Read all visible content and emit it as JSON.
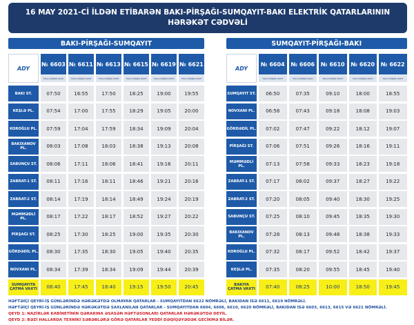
{
  "title": [
    "16 MAY 2021-Cİ İLDƏN ETİBARƏN BAKI-PİRŞAĞI-SUMQAYIT-BAKI ELEKTRİK QATARLARININ",
    "HƏRƏKƏT CƏDVƏLİ"
  ],
  "logo": "ADY",
  "column_note": "YOLA DÜŞMƏ VAXTI",
  "tables": [
    {
      "heading": "BAKI-PİRŞAĞI-SUMQAYIT",
      "columns": [
        "№ 6603",
        "№ 6611",
        "№ 6613",
        "№ 6615",
        "№ 6619",
        "№ 6621"
      ],
      "rows": [
        {
          "station": "BAKI ST.",
          "times": [
            "07:50",
            "16:55",
            "17:50",
            "18:25",
            "19:00",
            "19:55"
          ]
        },
        {
          "station": "KEŞLƏ PL.",
          "times": [
            "07:54",
            "17:00",
            "17:55",
            "18:29",
            "19:05",
            "20:00"
          ]
        },
        {
          "station": "KOROĞLU PL.",
          "times": [
            "07:59",
            "17:04",
            "17:59",
            "18:34",
            "19:09",
            "20:04"
          ]
        },
        {
          "station": "BAKIXANOV PL.",
          "times": [
            "08:03",
            "17:08",
            "18:03",
            "18:38",
            "19:13",
            "20:08"
          ]
        },
        {
          "station": "SABUNÇU ST.",
          "times": [
            "08:06",
            "17:11",
            "18:06",
            "18:41",
            "19:16",
            "20:11"
          ]
        },
        {
          "station": "ZABRAT-1 ST.",
          "times": [
            "08:11",
            "17:16",
            "18:11",
            "18:46",
            "19:21",
            "20:16"
          ]
        },
        {
          "station": "ZABRAT-2 ST.",
          "times": [
            "08:14",
            "17:19",
            "18:14",
            "18:49",
            "19:24",
            "20:19"
          ]
        },
        {
          "station": "MƏMMƏDLİ PL.",
          "times": [
            "08:17",
            "17:22",
            "18:17",
            "18:52",
            "19:27",
            "20:22"
          ]
        },
        {
          "station": "PİRŞAĞI ST.",
          "times": [
            "08:25",
            "17:30",
            "18:25",
            "19:00",
            "19:35",
            "20:30"
          ]
        },
        {
          "station": "GÖRDƏDİL PL.",
          "times": [
            "08:30",
            "17:35",
            "18:30",
            "19:05",
            "19:40",
            "20:35"
          ]
        },
        {
          "station": "NOVXANI PL.",
          "times": [
            "08:34",
            "17:39",
            "18:34",
            "19:09",
            "19:44",
            "20:39"
          ]
        },
        {
          "station": "SUMQAYITA ÇATMA VAXTI",
          "times": [
            "08:40",
            "17:45",
            "18:40",
            "19:15",
            "19:50",
            "20:45"
          ]
        }
      ]
    },
    {
      "heading": "SUMQAYIT-PİRŞAĞI-BAKI",
      "columns": [
        "№ 6604",
        "№ 6606",
        "№ 6610",
        "№ 6620",
        "№ 6622"
      ],
      "rows": [
        {
          "station": "SUMQAYIT ST.",
          "times": [
            "06:50",
            "07:35",
            "09:10",
            "18:00",
            "18:55"
          ]
        },
        {
          "station": "NOVXANI PL.",
          "times": [
            "06:58",
            "07:43",
            "09:18",
            "18:08",
            "19:03"
          ]
        },
        {
          "station": "GÖRDƏDİL PL.",
          "times": [
            "07:02",
            "07:47",
            "09:22",
            "18:12",
            "19:07"
          ]
        },
        {
          "station": "PİRŞAĞI ST.",
          "times": [
            "07:06",
            "07:51",
            "09:26",
            "18:16",
            "19:11"
          ]
        },
        {
          "station": "MƏMMƏDLİ PL.",
          "times": [
            "07:13",
            "07:58",
            "09:33",
            "18:23",
            "19:18"
          ]
        },
        {
          "station": "ZABRAT-1 ST.",
          "times": [
            "07:17",
            "08:02",
            "09:37",
            "18:27",
            "19:22"
          ]
        },
        {
          "station": "ZABRAT-2 ST.",
          "times": [
            "07:20",
            "08:05",
            "09:40",
            "18:30",
            "19:25"
          ]
        },
        {
          "station": "SABUNÇU ST.",
          "times": [
            "07:25",
            "08:10",
            "09:45",
            "18:35",
            "19:30"
          ]
        },
        {
          "station": "BAKIXANOV PL.",
          "times": [
            "07:28",
            "08:13",
            "09:48",
            "18:38",
            "19:33"
          ]
        },
        {
          "station": "KOROĞLU PL.",
          "times": [
            "07:32",
            "08:17",
            "09:52",
            "18:42",
            "19:37"
          ]
        },
        {
          "station": "KEŞLƏ PL.",
          "times": [
            "07:35",
            "08:20",
            "09:55",
            "18:45",
            "19:40"
          ]
        },
        {
          "station": "BAKIYA ÇATMA VAXTI",
          "times": [
            "07:40",
            "08:25",
            "10:00",
            "18:50",
            "19:45"
          ]
        }
      ]
    }
  ],
  "notes": [
    {
      "text": "HƏFTƏİÇİ QEYRİ-İŞ GÜNLƏRİNDƏ HƏRƏKƏTDƏ OLMAYAN QATARLAR - SUMQAYITDAN 6622 NÖMRƏLİ, BAKIDAN İSƏ 6611, 6619 NÖMRƏLİ.",
      "color": "#1e4f9c"
    },
    {
      "text": "HƏFTƏİÇİ QEYRİ-İŞ GÜNLƏRİNDƏ HƏRƏKƏTDƏ SAXLANILAN QATARLAR - SUMQAYITDAN 6604, 6606, 6610, 6620 NÖMRƏLİ, BAKIDAN İSƏ 6603, 6613, 6615 VƏ 6621 NÖMRƏLİ.",
      "color": "#1e4f9c"
    },
    {
      "text": "QEYD 1: NAZİRLƏR KABİNETİNİN QƏRARINA ƏSASƏN HƏFTƏSONLARI QATARLAR HƏRƏKƏTDƏ DEYİL.",
      "color": "#d0202a"
    },
    {
      "text": "QEYD 2: BƏZİ HALLARDA TEXNİKİ SƏBƏBLƏRƏ GÖRƏ QATARLAR YEDDİ DƏQİQƏYƏDƏK GECİKMƏ BİLƏR.",
      "color": "#d0202a"
    }
  ]
}
